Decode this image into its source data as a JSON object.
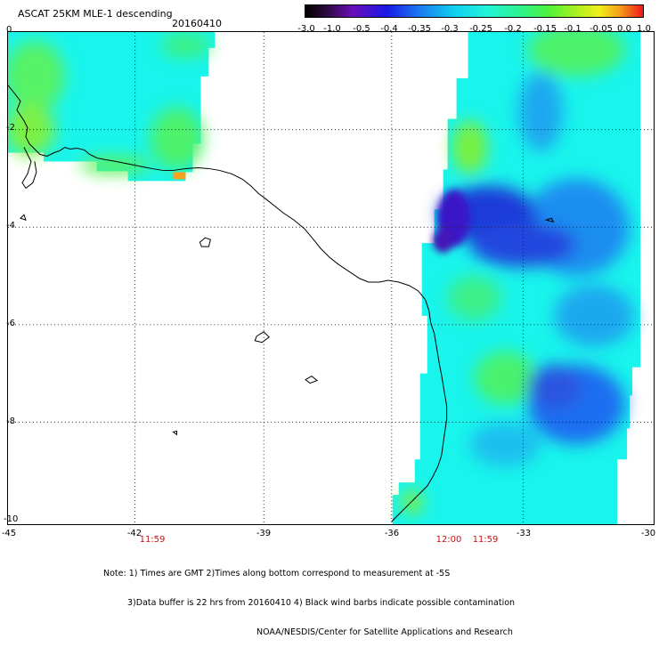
{
  "header": {
    "title": "ASCAT 25KM MLE-1 descending",
    "date": "20160410"
  },
  "colorbar": {
    "labels": [
      "-3.0",
      "-1.0",
      "-0.5",
      "-0.4",
      "-0.35",
      "-0.3",
      "-0.25",
      "-0.2",
      "-0.15",
      "-0.1",
      "-0.05",
      "0.0",
      "1.0"
    ]
  },
  "axes": {
    "lat_labels": [
      "0",
      "-2",
      "-4",
      "-6",
      "-8",
      "-10"
    ],
    "lon_labels": [
      "-45",
      "-42",
      "-39",
      "-36",
      "-33",
      "-30"
    ]
  },
  "times": [
    "11:59",
    "12:00",
    "11:59"
  ],
  "footer": {
    "line1": "Note: 1) Times are GMT 2)Times along bottom correspond to measurement at -5S",
    "line2": "3)Data buffer is 22 hrs from 20160410 4) Black wind barbs indicate possible contamination",
    "line3": "NOAA/NESDIS/Center for Satellite Applications and Research"
  },
  "colors": {
    "cyan": "#19f4ec",
    "green": "#4df26a",
    "blue": "#1f3ad8",
    "dark_blue": "#3b13c7",
    "light_blue": "#1ea8ef",
    "orange": "#f7a21f"
  }
}
